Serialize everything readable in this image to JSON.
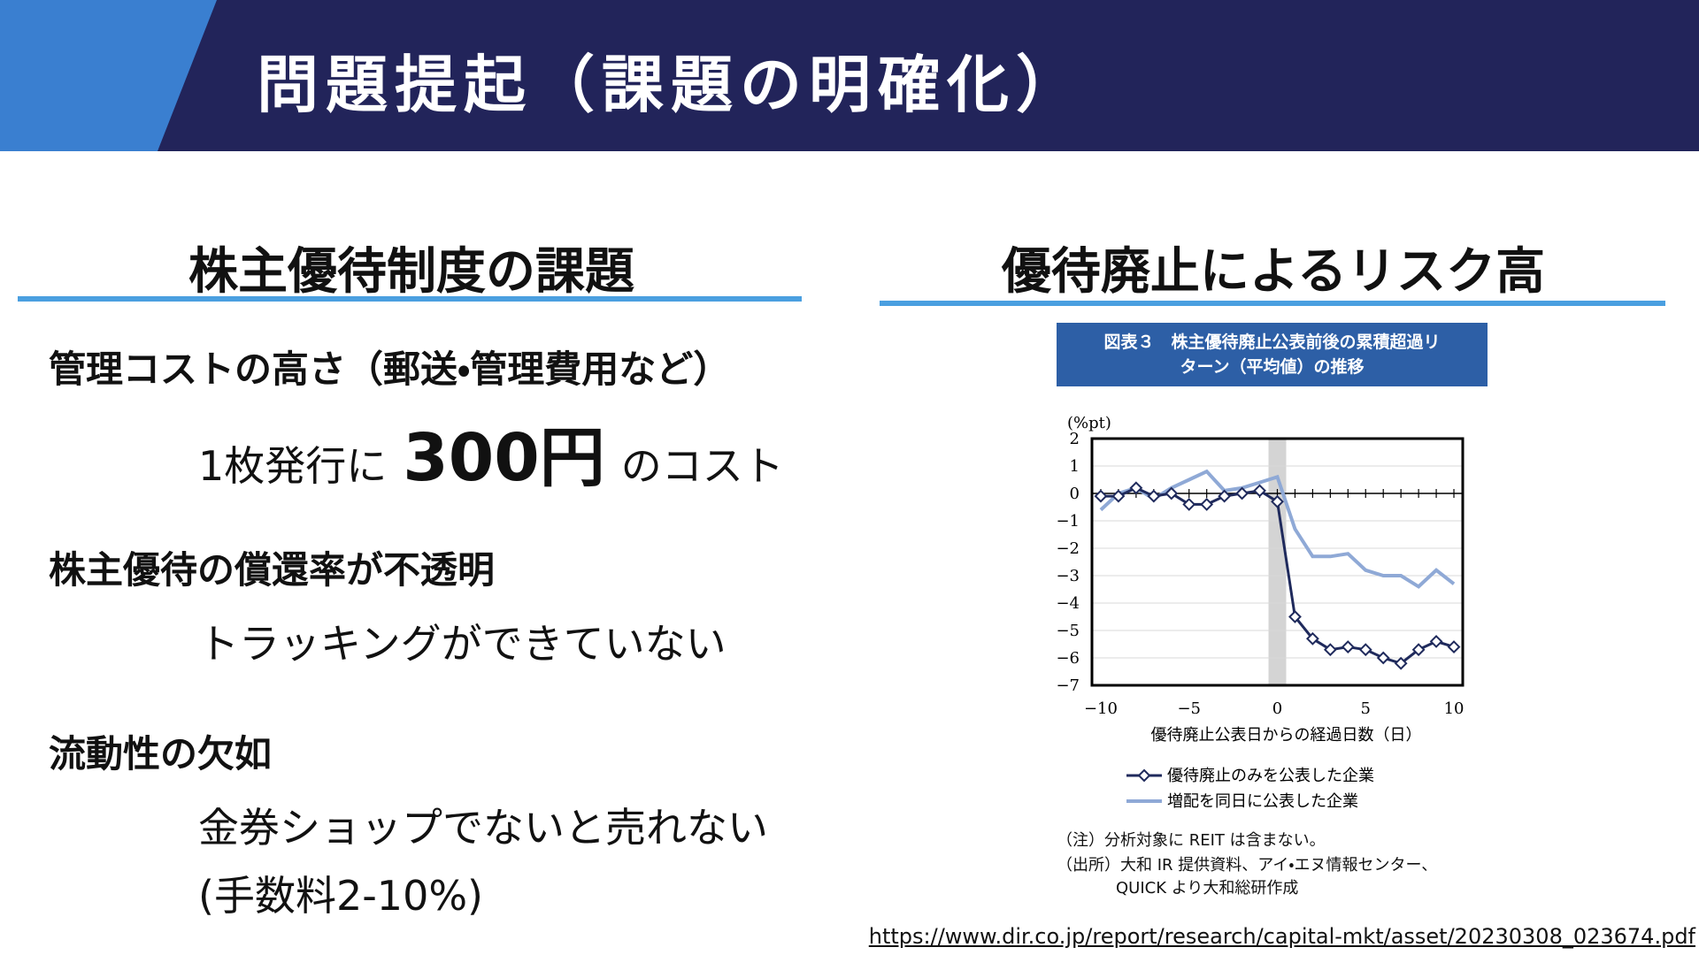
{
  "header": {
    "title": "問題提起（課題の明確化）"
  },
  "left": {
    "heading": "株主優待制度の課題",
    "item1": {
      "title": "管理コストの高さ（郵送・管理費用など）",
      "pre": "1枚発行に",
      "highlight": "300円",
      "post": "のコスト"
    },
    "item2": {
      "title": "株主優待の償還率が不透明",
      "detail": "トラッキングができていない"
    },
    "item3": {
      "title": "流動性の欠如",
      "detail": "金券ショップでないと売れない",
      "detail2": "(手数料2-10%)"
    }
  },
  "right": {
    "heading": "優待廃止によるリスク高",
    "figure_title": [
      "図表３　株主優待廃止公表前後の累積超過リ",
      "ターン（平均値）の推移"
    ],
    "notes": [
      "（注）分析対象に REIT は含まない。",
      "（出所）大和 IR 提供資料、アイ・エヌ情報センター、",
      "QUICK より大和総研作成"
    ]
  },
  "url": "https://www.dir.co.jp/report/research/capital-mkt/asset/20230308_023674.pdf",
  "chart_data": {
    "type": "line",
    "y_unit_label": "(%pt)",
    "x_label": "優待廃止公表日からの経過日数（日）",
    "x": [
      -10,
      -9,
      -8,
      -7,
      -6,
      -5,
      -4,
      -3,
      -2,
      -1,
      0,
      1,
      2,
      3,
      4,
      5,
      6,
      7,
      8,
      9,
      10
    ],
    "series": [
      {
        "name": "優待廃止のみを公表した企業",
        "color": "#1f2a5c",
        "marker": "diamond",
        "values": [
          -0.1,
          -0.1,
          0.2,
          -0.1,
          0.0,
          -0.4,
          -0.4,
          -0.1,
          0.0,
          0.1,
          -0.3,
          -4.5,
          -5.3,
          -5.7,
          -5.6,
          -5.7,
          -6.0,
          -6.2,
          -5.7,
          -5.4,
          -5.6
        ]
      },
      {
        "name": "増配を同日に公表した企業",
        "color": "#8fa9d6",
        "marker": "none",
        "values": [
          -0.6,
          0.0,
          0.2,
          -0.2,
          0.2,
          0.5,
          0.8,
          0.1,
          0.2,
          0.4,
          0.6,
          -1.3,
          -2.3,
          -2.3,
          -2.2,
          -2.8,
          -3.0,
          -3.0,
          -3.4,
          -2.8,
          -3.3
        ]
      }
    ],
    "xlim": [
      -10.5,
      10.5
    ],
    "xticks": [
      {
        "value": -10,
        "label": "−10"
      },
      {
        "value": -5,
        "label": "−5"
      },
      0,
      5,
      10
    ],
    "ylim": [
      -7,
      2
    ],
    "yticks": [
      2,
      1,
      0,
      {
        "value": -1,
        "label": "−1"
      },
      {
        "value": -2,
        "label": "−2"
      },
      {
        "value": -3,
        "label": "−3"
      },
      {
        "value": -4,
        "label": "−4"
      },
      {
        "value": -5,
        "label": "−5"
      },
      {
        "value": -6,
        "label": "−6"
      },
      {
        "value": -7,
        "label": "−7"
      }
    ],
    "grid": true,
    "shaded_x": 0,
    "legend": "bottom"
  }
}
